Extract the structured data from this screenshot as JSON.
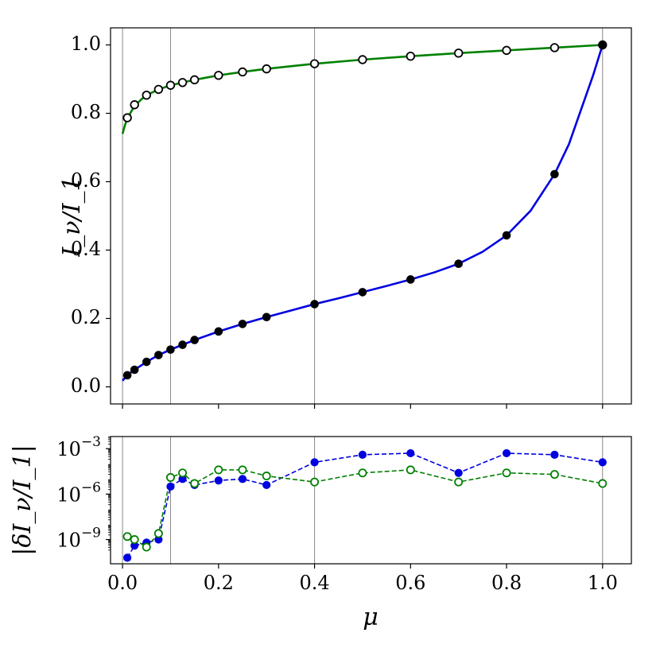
{
  "chart_data": [
    {
      "type": "line",
      "panel": "top",
      "ylabel": "I_ν/I_1",
      "xlim": [
        -0.025,
        1.06
      ],
      "ylim": [
        -0.05,
        1.05
      ],
      "xticks": [
        0.0,
        0.2,
        0.4,
        0.6,
        0.8,
        1.0
      ],
      "yticks": [
        0.0,
        0.2,
        0.4,
        0.6,
        0.8,
        1.0
      ],
      "ytick_labels": [
        "0.0",
        "0.2",
        "0.4",
        "0.6",
        "0.8",
        "1.0"
      ],
      "vlines": [
        0.0,
        0.1,
        0.4,
        1.0
      ],
      "grid": false,
      "series": [
        {
          "color": "#008000",
          "style": "solid",
          "curve": {
            "x": [
              0.0,
              0.005,
              0.01,
              0.02,
              0.03,
              0.04,
              0.05,
              0.075,
              0.1,
              0.125,
              0.15,
              0.2,
              0.25,
              0.3,
              0.4,
              0.5,
              0.6,
              0.7,
              0.8,
              0.9,
              1.0
            ],
            "y": [
              0.74,
              0.765,
              0.785,
              0.81,
              0.828,
              0.842,
              0.853,
              0.87,
              0.882,
              0.89,
              0.898,
              0.911,
              0.921,
              0.93,
              0.945,
              0.957,
              0.967,
              0.976,
              0.984,
              0.992,
              1.0
            ]
          },
          "markers": {
            "symbol": "open-circle",
            "x": [
              0.01,
              0.025,
              0.05,
              0.075,
              0.1,
              0.125,
              0.15,
              0.2,
              0.25,
              0.3,
              0.4,
              0.5,
              0.6,
              0.7,
              0.8,
              0.9,
              1.0
            ],
            "y": [
              0.787,
              0.825,
              0.853,
              0.87,
              0.882,
              0.89,
              0.898,
              0.911,
              0.921,
              0.93,
              0.945,
              0.957,
              0.967,
              0.976,
              0.984,
              0.992,
              1.0
            ]
          }
        },
        {
          "color": "#0000e0",
          "style": "solid",
          "curve": {
            "x": [
              0.0,
              0.01,
              0.025,
              0.05,
              0.075,
              0.1,
              0.125,
              0.15,
              0.2,
              0.25,
              0.3,
              0.35,
              0.4,
              0.45,
              0.5,
              0.55,
              0.6,
              0.65,
              0.7,
              0.75,
              0.8,
              0.85,
              0.9,
              0.93,
              0.96,
              0.98,
              1.0
            ],
            "y": [
              0.018,
              0.034,
              0.05,
              0.073,
              0.093,
              0.109,
              0.123,
              0.137,
              0.162,
              0.184,
              0.204,
              0.223,
              0.242,
              0.259,
              0.277,
              0.295,
              0.314,
              0.335,
              0.36,
              0.395,
              0.443,
              0.515,
              0.622,
              0.71,
              0.83,
              0.91,
              1.0
            ]
          },
          "markers": {
            "symbol": "filled-circle",
            "color": "#000000",
            "x": [
              0.01,
              0.025,
              0.05,
              0.075,
              0.1,
              0.125,
              0.15,
              0.2,
              0.25,
              0.3,
              0.4,
              0.5,
              0.6,
              0.7,
              0.8,
              0.9,
              1.0
            ],
            "y": [
              0.034,
              0.05,
              0.073,
              0.093,
              0.109,
              0.123,
              0.137,
              0.162,
              0.184,
              0.204,
              0.242,
              0.277,
              0.314,
              0.36,
              0.443,
              0.622,
              1.0
            ]
          }
        }
      ]
    },
    {
      "type": "line",
      "panel": "bottom",
      "ylabel": "|δI_ν/I_1|",
      "xlabel": "μ",
      "yscale": "log",
      "xlim": [
        -0.025,
        1.06
      ],
      "ylim_log10": [
        -10.6,
        -2.2
      ],
      "xticks": [
        0.0,
        0.2,
        0.4,
        0.6,
        0.8,
        1.0
      ],
      "xtick_labels": [
        "0.0",
        "0.2",
        "0.4",
        "0.6",
        "0.8",
        "1.0"
      ],
      "yticks_log10": [
        -9,
        -6,
        -3
      ],
      "ytick_base": "10",
      "ytick_exponents": [
        "−9",
        "−6",
        "−3"
      ],
      "vlines": [
        0.0,
        0.1,
        0.4,
        1.0
      ],
      "grid": false,
      "series": [
        {
          "color": "#0000e0",
          "style": "dashed",
          "marker": "filled-circle",
          "x": [
            0.01,
            0.025,
            0.05,
            0.075,
            0.1,
            0.125,
            0.15,
            0.2,
            0.25,
            0.3,
            0.4,
            0.5,
            0.6,
            0.7,
            0.8,
            0.9,
            1.0
          ],
          "log10_y": [
            -10.2,
            -9.4,
            -9.2,
            -9.0,
            -5.5,
            -5.0,
            -5.4,
            -5.1,
            -5.0,
            -5.4,
            -3.9,
            -3.4,
            -3.3,
            -4.6,
            -3.3,
            -3.4,
            -3.9
          ]
        },
        {
          "color": "#008000",
          "style": "dashed",
          "marker": "open-circle",
          "x": [
            0.01,
            0.025,
            0.05,
            0.075,
            0.1,
            0.125,
            0.15,
            0.2,
            0.25,
            0.3,
            0.4,
            0.5,
            0.6,
            0.7,
            0.8,
            0.9,
            1.0
          ],
          "log10_y": [
            -8.8,
            -9.0,
            -9.5,
            -8.6,
            -4.9,
            -4.6,
            -5.3,
            -4.4,
            -4.4,
            -4.8,
            -5.2,
            -4.6,
            -4.4,
            -5.2,
            -4.6,
            -4.7,
            -5.3
          ]
        }
      ]
    }
  ]
}
